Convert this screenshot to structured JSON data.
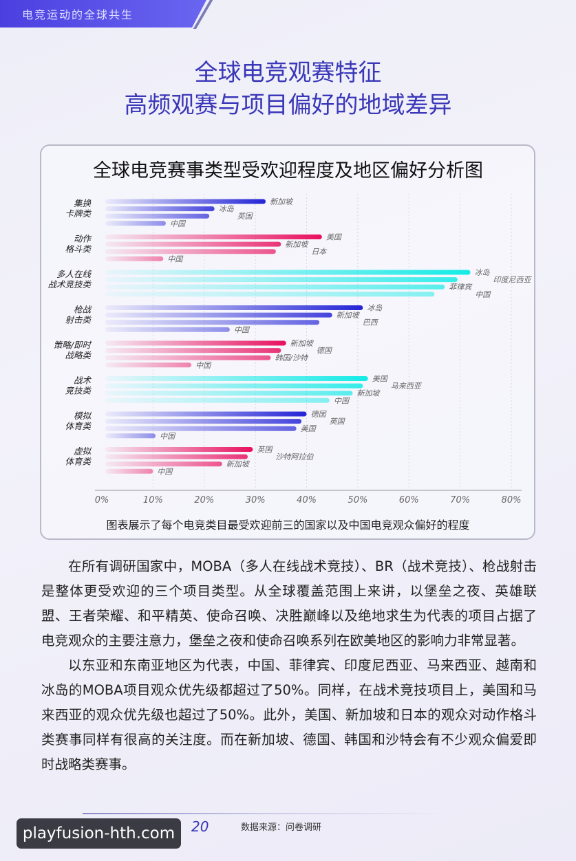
{
  "header": {
    "section": "电竞运动的全球共生"
  },
  "titles": {
    "line1": "全球电竞观赛特征",
    "line2": "高频观赛与项目偏好的地域差异"
  },
  "colors": {
    "blue": "#2424d6",
    "pink": "#e8105f",
    "cyan": "#14ebe6",
    "title": "#3a37b8"
  },
  "chart_data": {
    "type": "bar",
    "orientation": "horizontal",
    "title": "全球电竞赛事类型受欢迎程度及地区偏好分析图",
    "caption": "图表展示了每个电竞类目最受欢迎前三的国家以及中国电竞观众偏好的程度",
    "xlim": [
      0,
      80
    ],
    "x_unit": "%",
    "ticks": [
      "0%",
      "10%",
      "20%",
      "30%",
      "40%",
      "50%",
      "60%",
      "70%",
      "80%"
    ],
    "grid": true,
    "groups": [
      {
        "category": [
          "集换",
          "卡牌类"
        ],
        "color": "blue",
        "bars": [
          {
            "country": "新加坡",
            "value": 32
          },
          {
            "country": "冰岛",
            "value": 22
          },
          {
            "country": "英国",
            "value": 21
          },
          {
            "country": "中国",
            "value": 12.5
          }
        ]
      },
      {
        "category": [
          "动作",
          "格斗类"
        ],
        "color": "pink",
        "bars": [
          {
            "country": "美国",
            "value": 43
          },
          {
            "country": "新加坡",
            "value": 35
          },
          {
            "country": "日本",
            "value": 34
          },
          {
            "country": "中国",
            "value": 12
          }
        ]
      },
      {
        "category": [
          "多人在线",
          "战术竞技类"
        ],
        "color": "cyan",
        "bars": [
          {
            "country": "冰岛",
            "value": 72
          },
          {
            "country": "印度尼西亚",
            "value": 69.5
          },
          {
            "country": "菲律宾",
            "value": 67
          },
          {
            "country": "中国",
            "value": 65
          }
        ]
      },
      {
        "category": [
          "枪战",
          "射击类"
        ],
        "color": "blue",
        "bars": [
          {
            "country": "冰岛",
            "value": 51
          },
          {
            "country": "新加坡",
            "value": 45
          },
          {
            "country": "巴西",
            "value": 42.5
          },
          {
            "country": "中国",
            "value": 25
          }
        ]
      },
      {
        "category": [
          "策略/即时",
          "战略类"
        ],
        "color": "pink",
        "bars": [
          {
            "country": "新加坡",
            "value": 36
          },
          {
            "country": "德国",
            "value": 35
          },
          {
            "country": "韩国/沙特",
            "value": 33
          },
          {
            "country": "中国",
            "value": 17.5
          }
        ]
      },
      {
        "category": [
          "战术",
          "竞技类"
        ],
        "color": "cyan",
        "bars": [
          {
            "country": "美国",
            "value": 52
          },
          {
            "country": "马来西亚",
            "value": 51
          },
          {
            "country": "新加坡",
            "value": 49
          },
          {
            "country": "中国",
            "value": 44.5
          }
        ]
      },
      {
        "category": [
          "模拟",
          "体育类"
        ],
        "color": "blue",
        "bars": [
          {
            "country": "德国",
            "value": 40
          },
          {
            "country": "英国",
            "value": 39
          },
          {
            "country": "美国",
            "value": 38
          },
          {
            "country": "中国",
            "value": 10.5
          }
        ]
      },
      {
        "category": [
          "虚拟",
          "体育类"
        ],
        "color": "pink",
        "bars": [
          {
            "country": "英国",
            "value": 29.5
          },
          {
            "country": "沙特阿拉伯",
            "value": 28.5
          },
          {
            "country": "新加坡",
            "value": 23.5
          },
          {
            "country": "中国",
            "value": 10
          }
        ]
      }
    ]
  },
  "body": {
    "p1": "在所有调研国家中，MOBA（多人在线战术竞技）、BR（战术竞技）、枪战射击是整体更受欢迎的三个项目类型。从全球覆盖范围上来讲，以堡垒之夜、英雄联盟、王者荣耀、和平精英、使命召唤、决胜巅峰以及绝地求生为代表的项目占据了电竞观众的主要注意力，堡垒之夜和使命召唤系列在欧美地区的影响力非常显著。",
    "p2": "以东亚和东南亚地区为代表，中国、菲律宾、印度尼西亚、马来西亚、越南和冰岛的MOBA项目观众优先级都超过了50%。同样，在战术竞技项目上，美国和马来西亚的观众优先级也超过了50%。此外，美国、新加坡和日本的观众对动作格斗类赛事同样有很高的关注度。而在新加坡、德国、韩国和沙特会有不少观众偏爱即时战略类赛事。"
  },
  "footer": {
    "page": "20",
    "source": "数据来源：问卷调研",
    "watermark": "playfusion-hth.com"
  }
}
